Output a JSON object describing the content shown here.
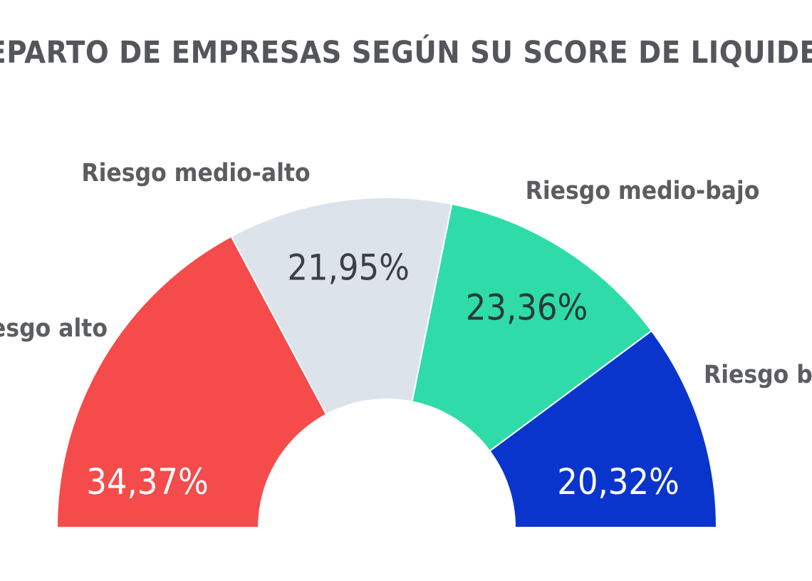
{
  "chart_data": {
    "type": "pie",
    "subtype": "semi-donut",
    "title": "REPARTO DE EMPRESAS SEGÚN SU SCORE DE LIQUIDEZ",
    "unit": "%",
    "slices": [
      {
        "label": "Riesgo alto",
        "value": 34.37,
        "value_label": "34,37%",
        "color": "#f54b4b",
        "label_color": "#ffffff"
      },
      {
        "label": "Riesgo medio-alto",
        "value": 21.95,
        "value_label": "21,95%",
        "color": "#dde3ea",
        "label_color": "#3c3f44"
      },
      {
        "label": "Riesgo medio-bajo",
        "value": 23.36,
        "value_label": "23,36%",
        "color": "#2fdca9",
        "label_color": "#2a3a36"
      },
      {
        "label": "Riesgo bajo",
        "value": 20.32,
        "value_label": "20,32%",
        "color": "#0a35cc",
        "label_color": "#ffffff"
      }
    ],
    "legend": "none"
  }
}
